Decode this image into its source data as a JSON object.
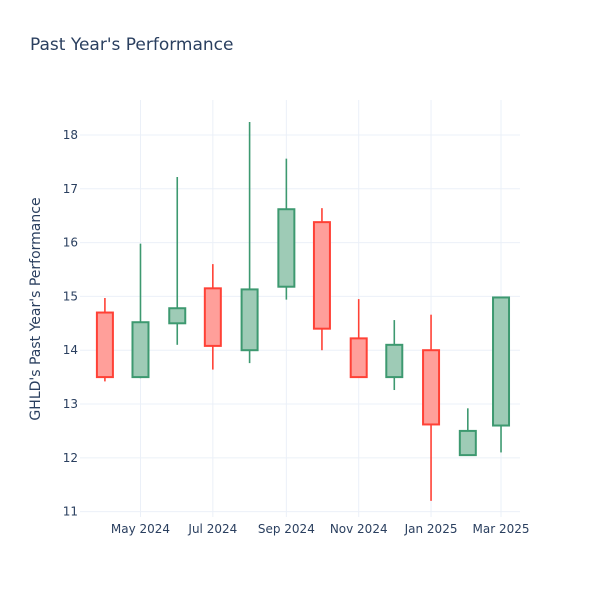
{
  "chart_data": {
    "type": "candlestick",
    "title": "Past Year's Performance",
    "xlabel": "",
    "ylabel": "GHLD's Past Year's Performance",
    "ylim": [
      10.9,
      18.65
    ],
    "yticks": [
      "11",
      "12",
      "13",
      "14",
      "15",
      "16",
      "17",
      "18"
    ],
    "ytick_values": [
      11,
      12,
      13,
      14,
      15,
      16,
      17,
      18
    ],
    "xticks": [
      "May 2024",
      "Jul 2024",
      "Sep 2024",
      "Nov 2024",
      "Jan 2025",
      "Mar 2025"
    ],
    "xtick_values": [
      "2024-05-01",
      "2024-07-01",
      "2024-09-01",
      "2024-11-01",
      "2025-01-01",
      "2025-03-01"
    ],
    "xlim": [
      "2024-03-11",
      "2025-03-17"
    ],
    "grid": true,
    "colors": {
      "increasing": "#3d9970",
      "increasing_fill": "#9ecbb6",
      "decreasing": "#ff4136",
      "decreasing_fill": "#ff9f9a",
      "grid": "#ebf0f8",
      "text": "#2a3f5f"
    },
    "candles": [
      {
        "date": "2024-04-01",
        "open": 14.7,
        "high": 14.97,
        "low": 13.42,
        "close": 13.5
      },
      {
        "date": "2024-05-01",
        "open": 13.5,
        "high": 15.98,
        "low": 13.48,
        "close": 14.52
      },
      {
        "date": "2024-06-01",
        "open": 14.5,
        "high": 17.22,
        "low": 14.1,
        "close": 14.78
      },
      {
        "date": "2024-07-01",
        "open": 15.15,
        "high": 15.6,
        "low": 13.64,
        "close": 14.08
      },
      {
        "date": "2024-08-01",
        "open": 14.0,
        "high": 18.24,
        "low": 13.76,
        "close": 15.13
      },
      {
        "date": "2024-09-01",
        "open": 15.18,
        "high": 17.56,
        "low": 14.94,
        "close": 16.62
      },
      {
        "date": "2024-10-01",
        "open": 16.38,
        "high": 16.64,
        "low": 14.0,
        "close": 14.4
      },
      {
        "date": "2024-11-01",
        "open": 14.22,
        "high": 14.95,
        "low": 13.52,
        "close": 13.5
      },
      {
        "date": "2024-12-01",
        "open": 13.5,
        "high": 14.56,
        "low": 13.26,
        "close": 14.1
      },
      {
        "date": "2025-01-01",
        "open": 14.0,
        "high": 14.66,
        "low": 11.2,
        "close": 12.62
      },
      {
        "date": "2025-02-01",
        "open": 12.05,
        "high": 12.92,
        "low": 12.05,
        "close": 12.5
      },
      {
        "date": "2025-03-01",
        "open": 12.6,
        "high": 14.98,
        "low": 12.1,
        "close": 14.98
      }
    ]
  }
}
